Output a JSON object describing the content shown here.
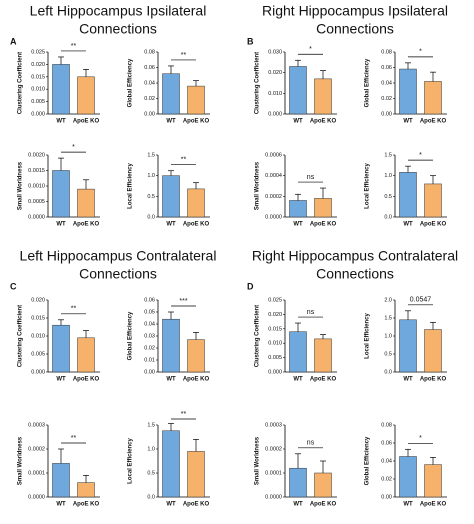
{
  "panels": [
    {
      "letter": "A",
      "title": [
        "Left Hippocampus Ipsilateral",
        "Connections"
      ]
    },
    {
      "letter": "B",
      "title": [
        "Right Hippocampus Ipsilateral",
        "Connections"
      ]
    },
    {
      "letter": "C",
      "title": [
        "Left Hippocampus Contralateral",
        "Connections"
      ]
    },
    {
      "letter": "D",
      "title": [
        "Right Hippocampus Contralateral",
        "Connections"
      ]
    }
  ],
  "chart_data": [
    {
      "type": "bar",
      "ylabel": "Clustering Coefficient",
      "categories": [
        "WT",
        "ApoE KO"
      ],
      "values": [
        0.02,
        0.015
      ],
      "errors": [
        0.003,
        0.003
      ],
      "colors": [
        "#6fa8dc",
        "#f6b26b"
      ],
      "ylim": [
        0,
        0.025
      ],
      "yticks": [
        {
          "value": 0,
          "label": "0.000"
        },
        {
          "value": 0.005,
          "label": "0.005"
        },
        {
          "value": 0.01,
          "label": "0.010"
        },
        {
          "value": 0.015,
          "label": "0.015"
        },
        {
          "value": 0.02,
          "label": "0.020"
        },
        {
          "value": 0.025,
          "label": "0.025"
        }
      ],
      "annotation": "**"
    },
    {
      "type": "bar",
      "ylabel": "Global Efficiency",
      "categories": [
        "WT",
        "ApoE KO"
      ],
      "values": [
        0.052,
        0.036
      ],
      "errors": [
        0.01,
        0.007
      ],
      "colors": [
        "#6fa8dc",
        "#f6b26b"
      ],
      "ylim": [
        0,
        0.08
      ],
      "yticks": [
        {
          "value": 0,
          "label": "0.00"
        },
        {
          "value": 0.02,
          "label": "0.02"
        },
        {
          "value": 0.04,
          "label": "0.04"
        },
        {
          "value": 0.06,
          "label": "0.06"
        },
        {
          "value": 0.08,
          "label": "0.08"
        }
      ],
      "annotation": "**"
    },
    {
      "type": "bar",
      "ylabel": "Small Worldness",
      "categories": [
        "WT",
        "ApoE KO"
      ],
      "values": [
        0.0015,
        0.0009
      ],
      "errors": [
        0.0004,
        0.0003
      ],
      "colors": [
        "#6fa8dc",
        "#f6b26b"
      ],
      "ylim": [
        0,
        0.002
      ],
      "yticks": [
        {
          "value": 0,
          "label": "0.0000"
        },
        {
          "value": 0.0005,
          "label": "0.0005"
        },
        {
          "value": 0.001,
          "label": "0.0010"
        },
        {
          "value": 0.0015,
          "label": "0.0015"
        },
        {
          "value": 0.002,
          "label": "0.0020"
        }
      ],
      "annotation": "*"
    },
    {
      "type": "bar",
      "ylabel": "Local Efficiency",
      "categories": [
        "WT",
        "ApoE KO"
      ],
      "values": [
        1.0,
        0.68
      ],
      "errors": [
        0.12,
        0.15
      ],
      "colors": [
        "#6fa8dc",
        "#f6b26b"
      ],
      "ylim": [
        0,
        1.5
      ],
      "yticks": [
        {
          "value": 0,
          "label": "0.0"
        },
        0.5,
        {
          "value": 1,
          "label": "1.0"
        },
        1.5
      ],
      "annotation": "**"
    },
    {
      "type": "bar",
      "ylabel": "Clustering Coefficient",
      "categories": [
        "WT",
        "ApoE KO"
      ],
      "values": [
        0.023,
        0.017
      ],
      "errors": [
        0.003,
        0.004
      ],
      "colors": [
        "#6fa8dc",
        "#f6b26b"
      ],
      "ylim": [
        0,
        0.03
      ],
      "yticks": [
        {
          "value": 0,
          "label": "0.000"
        },
        {
          "value": 0.01,
          "label": "0.010"
        },
        {
          "value": 0.02,
          "label": "0.020"
        },
        {
          "value": 0.03,
          "label": "0.030"
        }
      ],
      "annotation": "*"
    },
    {
      "type": "bar",
      "ylabel": "Global Efficiency",
      "categories": [
        "WT",
        "ApoE KO"
      ],
      "values": [
        0.058,
        0.042
      ],
      "errors": [
        0.008,
        0.012
      ],
      "colors": [
        "#6fa8dc",
        "#f6b26b"
      ],
      "ylim": [
        0,
        0.08
      ],
      "yticks": [
        {
          "value": 0,
          "label": "0.00"
        },
        {
          "value": 0.02,
          "label": "0.02"
        },
        {
          "value": 0.04,
          "label": "0.04"
        },
        {
          "value": 0.06,
          "label": "0.06"
        },
        {
          "value": 0.08,
          "label": "0.08"
        }
      ],
      "annotation": "*"
    },
    {
      "type": "bar",
      "ylabel": "Small Worldness",
      "categories": [
        "WT",
        "ApoE KO"
      ],
      "values": [
        0.00016,
        0.00018
      ],
      "errors": [
        6e-05,
        0.0001
      ],
      "colors": [
        "#6fa8dc",
        "#f6b26b"
      ],
      "ylim": [
        0,
        0.0006
      ],
      "yticks": [
        {
          "value": 0,
          "label": "0.0000"
        },
        {
          "value": 0.0002,
          "label": "0.0002"
        },
        {
          "value": 0.0004,
          "label": "0.0004"
        },
        {
          "value": 0.0006,
          "label": "0.0006"
        }
      ],
      "annotation": "ns"
    },
    {
      "type": "bar",
      "ylabel": "Local Efficiency",
      "categories": [
        "WT",
        "ApoE KO"
      ],
      "values": [
        1.08,
        0.8
      ],
      "errors": [
        0.15,
        0.2
      ],
      "colors": [
        "#6fa8dc",
        "#f6b26b"
      ],
      "ylim": [
        0,
        1.5
      ],
      "yticks": [
        {
          "value": 0,
          "label": "0.0"
        },
        0.5,
        {
          "value": 1,
          "label": "1.0"
        },
        1.5
      ],
      "annotation": "*"
    },
    {
      "type": "bar",
      "ylabel": "Clustering Coefficient",
      "categories": [
        "WT",
        "ApoE KO"
      ],
      "values": [
        0.013,
        0.0095
      ],
      "errors": [
        0.0015,
        0.002
      ],
      "colors": [
        "#6fa8dc",
        "#f6b26b"
      ],
      "ylim": [
        0,
        0.02
      ],
      "yticks": [
        {
          "value": 0,
          "label": "0.000"
        },
        {
          "value": 0.005,
          "label": "0.005"
        },
        {
          "value": 0.01,
          "label": "0.010"
        },
        {
          "value": 0.015,
          "label": "0.015"
        },
        {
          "value": 0.02,
          "label": "0.020"
        }
      ],
      "annotation": "**"
    },
    {
      "type": "bar",
      "ylabel": "Global Efficiency",
      "categories": [
        "WT",
        "ApoE KO"
      ],
      "values": [
        0.044,
        0.027
      ],
      "errors": [
        0.006,
        0.006
      ],
      "colors": [
        "#6fa8dc",
        "#f6b26b"
      ],
      "ylim": [
        0,
        0.06
      ],
      "yticks": [
        {
          "value": 0,
          "label": "0.00"
        },
        0.01,
        0.02,
        0.03,
        0.04,
        0.05,
        0.06
      ],
      "annotation": "***"
    },
    {
      "type": "bar",
      "ylabel": "Small Worldness",
      "categories": [
        "WT",
        "ApoE KO"
      ],
      "values": [
        0.00014,
        6e-05
      ],
      "errors": [
        6e-05,
        3e-05
      ],
      "colors": [
        "#6fa8dc",
        "#f6b26b"
      ],
      "ylim": [
        0,
        0.0003
      ],
      "yticks": [
        {
          "value": 0,
          "label": "0.0000"
        },
        0.0001,
        0.0002,
        0.0003
      ],
      "annotation": "**"
    },
    {
      "type": "bar",
      "ylabel": "Local Efficiency",
      "categories": [
        "WT",
        "ApoE KO"
      ],
      "values": [
        1.38,
        0.95
      ],
      "errors": [
        0.15,
        0.25
      ],
      "colors": [
        "#6fa8dc",
        "#f6b26b"
      ],
      "ylim": [
        0,
        1.5
      ],
      "yticks": [
        {
          "value": 0,
          "label": "0.0"
        },
        0.5,
        {
          "value": 1,
          "label": "1.0"
        },
        1.5
      ],
      "annotation": "**"
    },
    {
      "type": "bar",
      "ylabel": "Clustering Coefficient",
      "categories": [
        "WT",
        "ApoE KO"
      ],
      "values": [
        0.014,
        0.0115
      ],
      "errors": [
        0.003,
        0.0015
      ],
      "colors": [
        "#6fa8dc",
        "#f6b26b"
      ],
      "ylim": [
        0,
        0.025
      ],
      "yticks": [
        {
          "value": 0,
          "label": "0.000"
        },
        {
          "value": 0.005,
          "label": "0.005"
        },
        {
          "value": 0.01,
          "label": "0.010"
        },
        {
          "value": 0.015,
          "label": "0.015"
        },
        {
          "value": 0.02,
          "label": "0.020"
        },
        {
          "value": 0.025,
          "label": "0.025"
        }
      ],
      "annotation": "ns"
    },
    {
      "type": "bar",
      "ylabel": "Local Efficiency",
      "categories": [
        "WT",
        "ApoE KO"
      ],
      "values": [
        1.45,
        1.18
      ],
      "errors": [
        0.25,
        0.2
      ],
      "colors": [
        "#6fa8dc",
        "#f6b26b"
      ],
      "ylim": [
        0,
        2.0
      ],
      "yticks": [
        {
          "value": 0,
          "label": "0.0"
        },
        0.5,
        {
          "value": 1,
          "label": "1.0"
        },
        1.5,
        {
          "value": 2,
          "label": "2.0"
        }
      ],
      "annotation": "0.0547"
    },
    {
      "type": "bar",
      "ylabel": "Small Worldness",
      "categories": [
        "WT",
        "ApoE KO"
      ],
      "values": [
        0.00012,
        0.0001
      ],
      "errors": [
        6e-05,
        5e-05
      ],
      "colors": [
        "#6fa8dc",
        "#f6b26b"
      ],
      "ylim": [
        0,
        0.0003
      ],
      "yticks": [
        {
          "value": 0,
          "label": "0.0000"
        },
        0.0001,
        0.0002,
        0.0003
      ],
      "annotation": "ns"
    },
    {
      "type": "bar",
      "ylabel": "Global Efficiency",
      "categories": [
        "WT",
        "ApoE KO"
      ],
      "values": [
        0.045,
        0.036
      ],
      "errors": [
        0.008,
        0.008
      ],
      "colors": [
        "#6fa8dc",
        "#f6b26b"
      ],
      "ylim": [
        0,
        0.08
      ],
      "yticks": [
        {
          "value": 0,
          "label": "0.00"
        },
        {
          "value": 0.02,
          "label": "0.02"
        },
        {
          "value": 0.04,
          "label": "0.04"
        },
        {
          "value": 0.06,
          "label": "0.06"
        },
        {
          "value": 0.08,
          "label": "0.08"
        }
      ],
      "annotation": "*"
    }
  ]
}
